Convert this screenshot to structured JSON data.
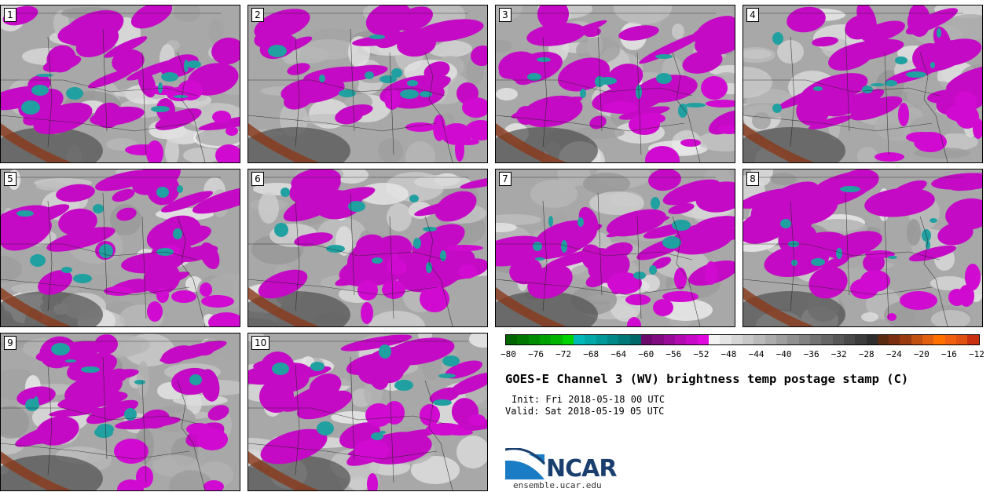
{
  "panels": [
    {
      "label": "1",
      "col": 0,
      "row": 0
    },
    {
      "label": "2",
      "col": 1,
      "row": 0
    },
    {
      "label": "3",
      "col": 2,
      "row": 0
    },
    {
      "label": "4",
      "col": 3,
      "row": 0
    },
    {
      "label": "5",
      "col": 0,
      "row": 1
    },
    {
      "label": "6",
      "col": 1,
      "row": 1
    },
    {
      "label": "7",
      "col": 2,
      "row": 1
    },
    {
      "label": "8",
      "col": 3,
      "row": 1
    },
    {
      "label": "9",
      "col": 0,
      "row": 2
    },
    {
      "label": "10",
      "col": 1,
      "row": 2
    }
  ],
  "colorbar": {
    "ticks": [
      "−80",
      "−76",
      "−72",
      "−68",
      "−64",
      "−60",
      "−56",
      "−52",
      "−48",
      "−44",
      "−40",
      "−36",
      "−32",
      "−28",
      "−24",
      "−20",
      "−16",
      "−12"
    ],
    "colors": [
      "#006400",
      "#007800",
      "#008c00",
      "#00a000",
      "#00b400",
      "#00d200",
      "#00b8b8",
      "#00a8a8",
      "#009898",
      "#008888",
      "#007878",
      "#006868",
      "#6a0a6a",
      "#800a80",
      "#980a98",
      "#b00ab0",
      "#c80ac8",
      "#e00ae0",
      "#f2f2f2",
      "#e4e4e4",
      "#d6d6d6",
      "#c8c8c8",
      "#bababa",
      "#acacac",
      "#9e9e9e",
      "#909090",
      "#828282",
      "#747474",
      "#666666",
      "#585858",
      "#4a4a4a",
      "#3c3c3c",
      "#2e2e2e",
      "#5a2a10",
      "#7a3010",
      "#9a3a10",
      "#c05010",
      "#e06010",
      "#ff7000",
      "#f06010",
      "#e05010",
      "#c83010"
    ]
  },
  "title": "GOES-E Channel 3 (WV) brightness temp postage stamp (C)",
  "init": "Init: Fri 2018-05-18 00 UTC",
  "valid": "Valid: Sat 2018-05-19 05 UTC",
  "logo": {
    "name": "NCAR",
    "url": "ensemble.ucar.edu"
  }
}
